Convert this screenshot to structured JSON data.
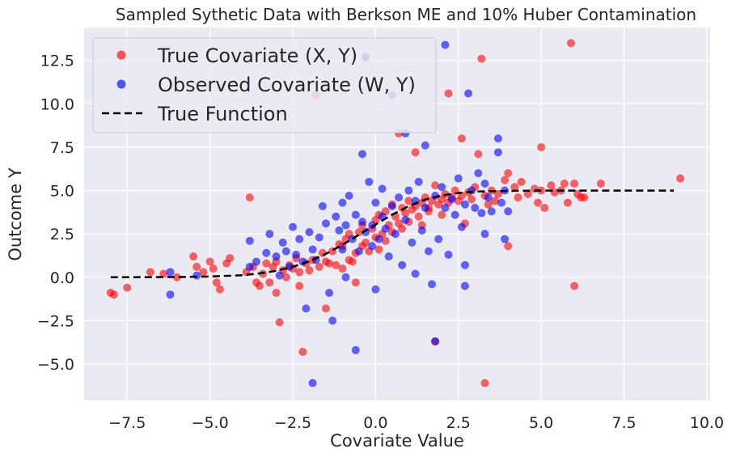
{
  "chart_data": {
    "type": "scatter",
    "title": "Sampled Sythetic Data with Berkson ME and 10% Huber Contamination",
    "xlabel": "Covariate Value",
    "ylabel": "Outcome Y",
    "xlim": [
      -8.8,
      10.1
    ],
    "ylim": [
      -7.1,
      14.4
    ],
    "x_ticks": [
      -7.5,
      -5.0,
      -2.5,
      0.0,
      2.5,
      5.0,
      7.5,
      10.0
    ],
    "x_tick_labels": [
      "−7.5",
      "−5.0",
      "−2.5",
      "0.0",
      "2.5",
      "5.0",
      "7.5",
      "10.0"
    ],
    "y_ticks": [
      -5.0,
      -2.5,
      0.0,
      2.5,
      5.0,
      7.5,
      10.0,
      12.5
    ],
    "y_tick_labels": [
      "−5.0",
      "−2.5",
      "0.0",
      "2.5",
      "5.0",
      "7.5",
      "10.0",
      "12.5"
    ],
    "grid": true,
    "legend_position": "top-left",
    "background_color": "#eaeaf2",
    "series": [
      {
        "name": "True Covariate (X, Y)",
        "kind": "scatter",
        "color": "#ff0000",
        "points": [
          [
            -8.0,
            -0.9
          ],
          [
            -7.9,
            -1.0
          ],
          [
            -7.5,
            -0.6
          ],
          [
            -6.8,
            0.3
          ],
          [
            -6.4,
            0.2
          ],
          [
            -6.0,
            0.0
          ],
          [
            -5.5,
            1.2
          ],
          [
            -5.4,
            0.6
          ],
          [
            -5.2,
            0.3
          ],
          [
            -5.0,
            0.9
          ],
          [
            -4.9,
            0.5
          ],
          [
            -4.8,
            -0.3
          ],
          [
            -4.7,
            -0.7
          ],
          [
            -4.5,
            0.8
          ],
          [
            -4.4,
            1.1
          ],
          [
            -3.9,
            0.3
          ],
          [
            -3.8,
            4.6
          ],
          [
            -3.7,
            0.6
          ],
          [
            -3.6,
            -0.3
          ],
          [
            -3.5,
            -0.5
          ],
          [
            -3.4,
            0.2
          ],
          [
            -3.3,
            0.8
          ],
          [
            -3.2,
            -0.3
          ],
          [
            -3.1,
            0.6
          ],
          [
            -3.0,
            0.9
          ],
          [
            -3.0,
            -0.9
          ],
          [
            -2.9,
            -2.6
          ],
          [
            -2.8,
            0.4
          ],
          [
            -2.7,
            0.0
          ],
          [
            -2.6,
            0.7
          ],
          [
            -2.5,
            0.5
          ],
          [
            -2.4,
            1.1
          ],
          [
            -2.3,
            0.3
          ],
          [
            -2.3,
            -0.5
          ],
          [
            -2.2,
            -4.3
          ],
          [
            -2.1,
            0.8
          ],
          [
            -2.0,
            0.4
          ],
          [
            -1.9,
            1.0
          ],
          [
            -1.8,
            10.5
          ],
          [
            -1.7,
            0.6
          ],
          [
            -1.6,
            1.4
          ],
          [
            -1.5,
            0.9
          ],
          [
            -1.5,
            -1.8
          ],
          [
            -1.4,
            0.8
          ],
          [
            -1.3,
            1.5
          ],
          [
            -1.2,
            0.7
          ],
          [
            -1.1,
            1.9
          ],
          [
            -1.0,
            0.5
          ],
          [
            -1.0,
            1.8
          ],
          [
            -0.9,
            2.2
          ],
          [
            -0.8,
            1.0
          ],
          [
            -0.8,
            2.5
          ],
          [
            -0.7,
            0.9
          ],
          [
            -0.6,
            1.4
          ],
          [
            -0.6,
            -0.3
          ],
          [
            -0.5,
            2.6
          ],
          [
            -0.4,
            1.8
          ],
          [
            -0.4,
            3.0
          ],
          [
            -0.3,
            12.7
          ],
          [
            -0.3,
            2.0
          ],
          [
            -0.2,
            1.5
          ],
          [
            -0.1,
            2.8
          ],
          [
            0.0,
            2.3
          ],
          [
            0.0,
            3.3
          ],
          [
            0.1,
            1.6
          ],
          [
            0.1,
            3.6
          ],
          [
            0.2,
            2.5
          ],
          [
            0.3,
            2.1
          ],
          [
            0.3,
            3.8
          ],
          [
            0.4,
            3.0
          ],
          [
            0.5,
            2.6
          ],
          [
            0.5,
            4.2
          ],
          [
            0.6,
            3.5
          ],
          [
            0.7,
            3.1
          ],
          [
            0.7,
            8.3
          ],
          [
            0.8,
            2.8
          ],
          [
            0.8,
            4.0
          ],
          [
            0.9,
            3.7
          ],
          [
            1.0,
            3.2
          ],
          [
            1.0,
            4.4
          ],
          [
            1.1,
            3.9
          ],
          [
            1.2,
            4.1
          ],
          [
            1.2,
            7.2
          ],
          [
            1.3,
            3.5
          ],
          [
            1.4,
            4.3
          ],
          [
            1.4,
            3.0
          ],
          [
            1.5,
            4.6
          ],
          [
            1.6,
            3.8
          ],
          [
            1.6,
            4.0
          ],
          [
            1.7,
            4.4
          ],
          [
            1.8,
            -3.7
          ],
          [
            1.8,
            5.3
          ],
          [
            1.9,
            4.2
          ],
          [
            2.0,
            4.5
          ],
          [
            2.0,
            3.6
          ],
          [
            2.1,
            4.8
          ],
          [
            2.2,
            10.6
          ],
          [
            2.2,
            4.3
          ],
          [
            2.3,
            4.6
          ],
          [
            2.4,
            5.0
          ],
          [
            2.5,
            4.4
          ],
          [
            2.6,
            8.0
          ],
          [
            2.6,
            4.7
          ],
          [
            2.7,
            3.1
          ],
          [
            2.8,
            4.9
          ],
          [
            2.9,
            4.5
          ],
          [
            3.0,
            5.2
          ],
          [
            3.1,
            7.1
          ],
          [
            3.2,
            12.6
          ],
          [
            3.3,
            4.7
          ],
          [
            3.3,
            -6.1
          ],
          [
            3.4,
            4.2
          ],
          [
            3.5,
            5.0
          ],
          [
            3.6,
            4.4
          ],
          [
            3.7,
            4.8
          ],
          [
            3.9,
            5.6
          ],
          [
            4.0,
            6.0
          ],
          [
            4.0,
            1.8
          ],
          [
            4.2,
            5.2
          ],
          [
            4.3,
            4.6
          ],
          [
            4.4,
            5.5
          ],
          [
            4.6,
            4.8
          ],
          [
            4.8,
            5.1
          ],
          [
            4.9,
            4.3
          ],
          [
            5.0,
            7.5
          ],
          [
            5.0,
            5.0
          ],
          [
            5.1,
            4.0
          ],
          [
            5.3,
            5.3
          ],
          [
            5.4,
            4.9
          ],
          [
            5.6,
            5.0
          ],
          [
            5.7,
            5.4
          ],
          [
            5.8,
            4.3
          ],
          [
            5.9,
            13.5
          ],
          [
            6.0,
            -0.5
          ],
          [
            6.0,
            5.4
          ],
          [
            6.1,
            4.8
          ],
          [
            6.2,
            4.6
          ],
          [
            6.3,
            4.6
          ],
          [
            6.8,
            5.4
          ],
          [
            9.2,
            5.7
          ]
        ]
      },
      {
        "name": "Observed Covariate (W, Y)",
        "kind": "scatter",
        "color": "#0000ff",
        "points": [
          [
            -6.2,
            0.3
          ],
          [
            -6.2,
            -1.0
          ],
          [
            -5.4,
            0.1
          ],
          [
            -3.8,
            2.1
          ],
          [
            -3.8,
            0.6
          ],
          [
            -3.6,
            0.9
          ],
          [
            -3.3,
            1.4
          ],
          [
            -3.2,
            2.5
          ],
          [
            -3.0,
            1.2
          ],
          [
            -2.9,
            0.1
          ],
          [
            -2.8,
            2.0
          ],
          [
            -2.7,
            1.5
          ],
          [
            -2.6,
            0.6
          ],
          [
            -2.5,
            2.9
          ],
          [
            -2.4,
            1.3
          ],
          [
            -2.3,
            2.2
          ],
          [
            -2.2,
            0.9
          ],
          [
            -2.1,
            -1.8
          ],
          [
            -2.0,
            2.6
          ],
          [
            -1.9,
            -6.1
          ],
          [
            -1.9,
            1.6
          ],
          [
            -1.8,
            1.0
          ],
          [
            -1.7,
            2.3
          ],
          [
            -1.6,
            4.1
          ],
          [
            -1.5,
            3.1
          ],
          [
            -1.4,
            -0.9
          ],
          [
            -1.3,
            -2.5
          ],
          [
            -1.2,
            3.5
          ],
          [
            -1.1,
            2.7
          ],
          [
            -1.0,
            1.6
          ],
          [
            -1.0,
            4.3
          ],
          [
            -0.9,
            3.0
          ],
          [
            -0.9,
            0.0
          ],
          [
            -0.8,
            4.7
          ],
          [
            -0.7,
            2.2
          ],
          [
            -0.6,
            3.6
          ],
          [
            -0.6,
            -4.2
          ],
          [
            -0.5,
            1.5
          ],
          [
            -0.4,
            3.2
          ],
          [
            -0.4,
            7.1
          ],
          [
            -0.3,
            2.6
          ],
          [
            -0.3,
            12.7
          ],
          [
            -0.2,
            5.5
          ],
          [
            -0.1,
            3.0
          ],
          [
            -0.1,
            1.8
          ],
          [
            0.0,
            4.3
          ],
          [
            0.0,
            -0.7
          ],
          [
            0.1,
            2.2
          ],
          [
            0.2,
            3.5
          ],
          [
            0.2,
            5.1
          ],
          [
            0.3,
            2.8
          ],
          [
            0.4,
            1.2
          ],
          [
            0.5,
            10.5
          ],
          [
            0.5,
            4.1
          ],
          [
            0.6,
            2.5
          ],
          [
            0.7,
            4.6
          ],
          [
            0.8,
            0.7
          ],
          [
            0.9,
            8.3
          ],
          [
            0.9,
            3.3
          ],
          [
            1.0,
            5.0
          ],
          [
            1.1,
            2.0
          ],
          [
            1.2,
            4.4
          ],
          [
            1.2,
            0.2
          ],
          [
            1.3,
            5.5
          ],
          [
            1.4,
            2.7
          ],
          [
            1.5,
            7.6
          ],
          [
            1.5,
            4.0
          ],
          [
            1.6,
            1.5
          ],
          [
            1.7,
            -0.4
          ],
          [
            1.8,
            4.7
          ],
          [
            1.8,
            -3.7
          ],
          [
            1.9,
            2.2
          ],
          [
            2.0,
            5.2
          ],
          [
            2.1,
            4.0
          ],
          [
            2.1,
            13.4
          ],
          [
            2.2,
            1.3
          ],
          [
            2.3,
            4.5
          ],
          [
            2.4,
            3.6
          ],
          [
            2.5,
            5.7
          ],
          [
            2.6,
            2.9
          ],
          [
            2.7,
            0.7
          ],
          [
            2.7,
            4.2
          ],
          [
            2.8,
            10.6
          ],
          [
            2.9,
            5.0
          ],
          [
            3.0,
            4.0
          ],
          [
            3.1,
            6.0
          ],
          [
            3.2,
            3.7
          ],
          [
            3.3,
            5.4
          ],
          [
            3.3,
            2.5
          ],
          [
            3.4,
            4.6
          ],
          [
            3.5,
            3.8
          ],
          [
            3.7,
            8.0
          ],
          [
            3.7,
            7.2
          ],
          [
            3.8,
            4.3
          ],
          [
            3.9,
            5.0
          ],
          [
            3.9,
            2.2
          ],
          [
            4.0,
            3.8
          ],
          [
            2.7,
            -0.5
          ]
        ]
      },
      {
        "name": "True Function",
        "kind": "line",
        "style": "dashed",
        "color": "#000000",
        "points": [
          [
            -8.0,
            0.0
          ],
          [
            -6.0,
            0.01
          ],
          [
            -5.0,
            0.04
          ],
          [
            -4.0,
            0.12
          ],
          [
            -3.5,
            0.22
          ],
          [
            -3.0,
            0.37
          ],
          [
            -2.5,
            0.6
          ],
          [
            -2.0,
            0.92
          ],
          [
            -1.5,
            1.35
          ],
          [
            -1.0,
            1.87
          ],
          [
            -0.5,
            2.45
          ],
          [
            0.0,
            3.04
          ],
          [
            0.5,
            3.61
          ],
          [
            1.0,
            4.1
          ],
          [
            1.5,
            4.48
          ],
          [
            2.0,
            4.72
          ],
          [
            2.5,
            4.86
          ],
          [
            3.0,
            4.94
          ],
          [
            4.0,
            4.98
          ],
          [
            5.0,
            5.0
          ],
          [
            9.0,
            5.0
          ]
        ]
      }
    ]
  }
}
